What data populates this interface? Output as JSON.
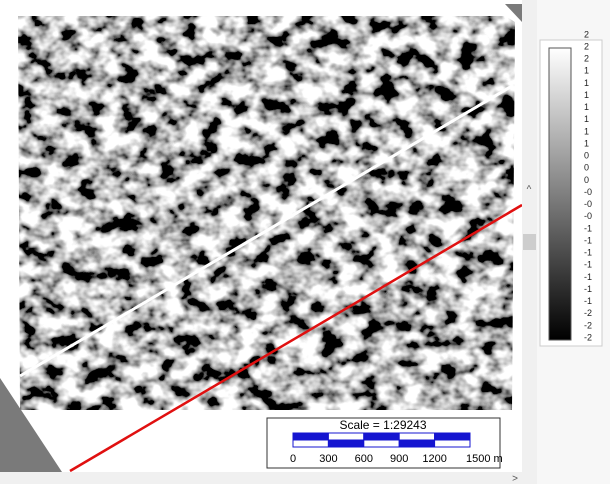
{
  "colorbar": {
    "labels": [
      "2",
      "2",
      "2",
      "1",
      "1",
      "1",
      "1",
      "1",
      "1",
      "1",
      "0",
      "0",
      "0",
      "-0",
      "-0",
      "-0",
      "-1",
      "-1",
      "-1",
      "-1",
      "-1",
      "-1",
      "-1",
      "-2",
      "-2",
      "-2"
    ]
  },
  "scale": {
    "title": "Scale = 1:29243",
    "labels": [
      "0",
      "300",
      "600",
      "900",
      "1200",
      "1500 m"
    ]
  }
}
